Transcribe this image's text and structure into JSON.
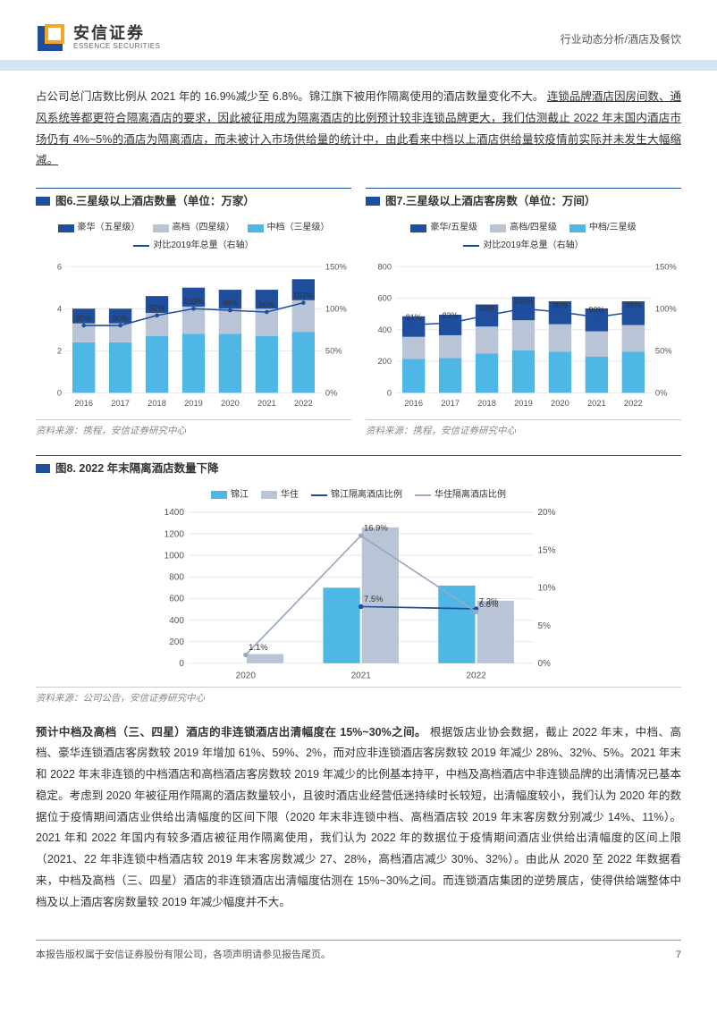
{
  "header": {
    "company_cn": "安信证券",
    "company_en": "ESSENCE SECURITIES",
    "doc_category": "行业动态分析/酒店及餐饮"
  },
  "logo_colors": {
    "outer": "#1f4e9c",
    "inner": "#f5a623"
  },
  "intro_paragraph": {
    "text": "占公司总门店数比例从 2021 年的 16.9%减少至 6.8%。锦江旗下被用作隔离使用的酒店数量变化不大。",
    "underlined": "连锁品牌酒店因房间数、通风系统等都更符合隔离酒店的要求，因此被征用成为隔离酒店的比例预计较非连锁品牌更大，我们估测截止 2022 年末国内酒店市场仍有 4%~5%的酒店为隔离酒店，而未被计入市场供给量的统计中，由此看来中档以上酒店供给量较疫情前实际并未发生大幅缩减。"
  },
  "chart6": {
    "title": "图6.三星级以上酒店数量（单位：万家）",
    "type": "stacked-bar-line",
    "categories": [
      "2016",
      "2017",
      "2018",
      "2019",
      "2020",
      "2021",
      "2022"
    ],
    "series": [
      {
        "name": "豪华（五星级）",
        "color": "#1f4e9c",
        "values": [
          0.7,
          0.7,
          0.8,
          0.9,
          0.9,
          0.9,
          1.0
        ]
      },
      {
        "name": "高档（四星级）",
        "color": "#b9c5d6",
        "values": [
          0.9,
          0.9,
          1.1,
          1.3,
          1.2,
          1.3,
          1.5
        ]
      },
      {
        "name": "中档（三星级）",
        "color": "#4fb7e6",
        "values": [
          2.4,
          2.4,
          2.7,
          2.8,
          2.8,
          2.7,
          2.9
        ]
      }
    ],
    "line": {
      "name": "对比2019年总量（右轴）",
      "color": "#1f4e9c",
      "values": [
        80,
        80,
        92,
        100,
        98,
        96,
        107
      ],
      "suffix": "%"
    },
    "ylim": [
      0,
      6
    ],
    "ytick_step": 2,
    "y2lim": [
      0,
      150
    ],
    "y2tick_step": 50,
    "bar_width": 0.62,
    "background": "#ffffff",
    "grid_color": "#e0e0e0",
    "label_fontsize": 9,
    "source": "资料来源：携程，安信证券研究中心"
  },
  "chart7": {
    "title": "图7.三星级以上酒店客房数（单位：万间）",
    "type": "stacked-bar-line",
    "categories": [
      "2016",
      "2017",
      "2018",
      "2019",
      "2020",
      "2021",
      "2022"
    ],
    "series": [
      {
        "name": "豪华/五星级",
        "color": "#1f4e9c",
        "values": [
          130,
          130,
          140,
          150,
          145,
          145,
          150
        ]
      },
      {
        "name": "高档/四星级",
        "color": "#b9c5d6",
        "values": [
          140,
          145,
          170,
          190,
          175,
          160,
          170
        ]
      },
      {
        "name": "中档/三星级",
        "color": "#4fb7e6",
        "values": [
          215,
          220,
          250,
          270,
          260,
          230,
          260
        ]
      }
    ],
    "line": {
      "name": "对比2019年总量（右轴）",
      "color": "#1f4e9c",
      "values": [
        81,
        83,
        92,
        100,
        96,
        90,
        96
      ],
      "suffix": "%"
    },
    "ylim": [
      0,
      800
    ],
    "ytick_step": 200,
    "y2lim": [
      0,
      150
    ],
    "y2tick_step": 50,
    "bar_width": 0.62,
    "background": "#ffffff",
    "grid_color": "#e0e0e0",
    "label_fontsize": 9,
    "source": "资料来源：携程，安信证券研究中心"
  },
  "chart8": {
    "title": "图8. 2022 年末隔离酒店数量下降",
    "type": "grouped-bar-line",
    "categories": [
      "2020",
      "2021",
      "2022"
    ],
    "bars": [
      {
        "name": "锦江",
        "color": "#4fb7e6",
        "values": [
          0,
          700,
          720
        ]
      },
      {
        "name": "华住",
        "color": "#b9c5d6",
        "values": [
          85,
          1260,
          580
        ]
      }
    ],
    "lines": [
      {
        "name": "锦江隔离酒店比例",
        "color": "#1f4e9c",
        "values": [
          null,
          7.5,
          7.2
        ],
        "suffix": "%"
      },
      {
        "name": "华住隔离酒店比例",
        "color": "#9aa8c0",
        "values": [
          1.1,
          16.9,
          6.8
        ],
        "suffix": "%"
      }
    ],
    "ylim": [
      0,
      1400
    ],
    "ytick_step": 200,
    "y2lim": [
      0,
      20
    ],
    "y2tick_step": 5,
    "bar_width": 0.32,
    "background": "#ffffff",
    "grid_color": "#e0e0e0",
    "label_fontsize": 9,
    "source": "资料来源：公司公告，安信证券研究中心"
  },
  "conclusion_paragraph": {
    "bold_lead": "预计中档及高档（三、四星）酒店的非连锁酒店出清幅度在 15%~30%之间。",
    "body": "根据饭店业协会数据，截止 2022 年末，中档、高档、豪华连锁酒店客房数较 2019 年增加 61%、59%、2%，而对应非连锁酒店客房数较 2019 年减少 28%、32%、5%。2021 年末和 2022 年末非连锁的中档酒店和高档酒店客房数较 2019 年减少的比例基本持平，中档及高档酒店中非连锁品牌的出清情况已基本稳定。考虑到 2020 年被征用作隔离的酒店数量较小，且彼时酒店业经营低迷持续时长较短，出清幅度较小，我们认为 2020 年的数据位于疫情期间酒店业供给出清幅度的区间下限（2020 年末非连锁中档、高档酒店较 2019 年末客房数分别减少 14%、11%）。2021 年和 2022 年国内有较多酒店被征用作隔离使用，我们认为 2022 年的数据位于疫情期间酒店业供给出清幅度的区间上限（2021、22 年非连锁中档酒店较 2019 年末客房数减少 27、28%，高档酒店减少 30%、32%）。由此从 2020 至 2022 年数据看来，中档及高档（三、四星）酒店的非连锁酒店出清幅度估测在 15%~30%之间。而连锁酒店集团的逆势展店，使得供给端整体中档及以上酒店客房数量较 2019 年减少幅度并不大。"
  },
  "footer": {
    "copyright": "本报告版权属于安信证券股份有限公司，各项声明请参见报告尾页。",
    "page_number": "7"
  }
}
